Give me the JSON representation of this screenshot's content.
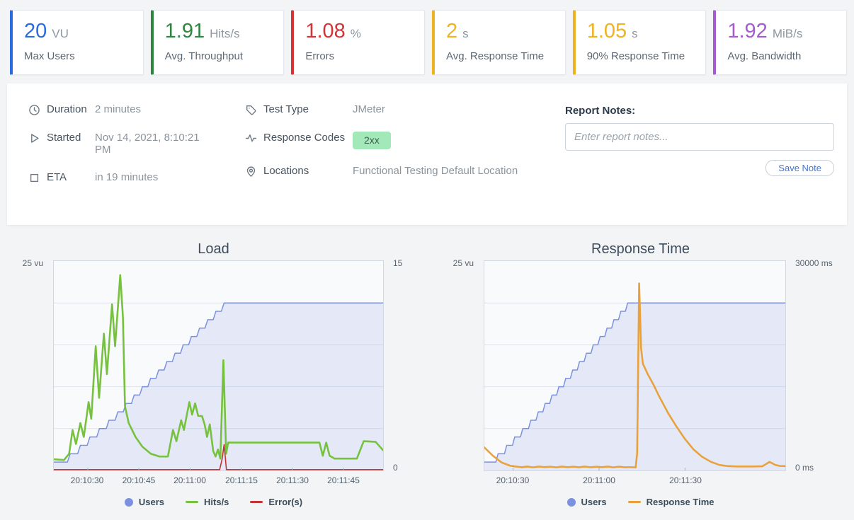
{
  "cards": [
    {
      "value": "20",
      "unit": "VU",
      "label": "Max Users",
      "color": "#2b6be0"
    },
    {
      "value": "1.91",
      "unit": "Hits/s",
      "label": "Avg. Throughput",
      "color": "#2e8540"
    },
    {
      "value": "1.08",
      "unit": "%",
      "label": "Errors",
      "color": "#d63434"
    },
    {
      "value": "2",
      "unit": "s",
      "label": "Avg. Response Time",
      "color": "#efb320"
    },
    {
      "value": "1.05",
      "unit": "s",
      "label": "90% Response Time",
      "color": "#efb320"
    },
    {
      "value": "1.92",
      "unit": "MiB/s",
      "label": "Avg. Bandwidth",
      "color": "#a55ad0"
    }
  ],
  "info": {
    "rows_left": [
      {
        "icon": "clock-icon",
        "label": "Duration",
        "value": "2 minutes"
      },
      {
        "icon": "play-icon",
        "label": "Started",
        "value": "Nov 14, 2021, 8:10:21 PM"
      },
      {
        "icon": "stop-icon",
        "label": "ETA",
        "value": "in 19 minutes"
      }
    ],
    "rows_mid": [
      {
        "icon": "tag-icon",
        "label": "Test Type",
        "value": "JMeter"
      },
      {
        "icon": "activity-icon",
        "label": "Response Codes",
        "badge": "2xx"
      },
      {
        "icon": "location-icon",
        "label": "Locations",
        "value": "Functional Testing Default Location"
      }
    ],
    "notes": {
      "label": "Report Notes:",
      "placeholder": "Enter report notes...",
      "save": "Save Note"
    }
  },
  "chart_data": [
    {
      "type": "line",
      "title": "Load",
      "grid": true,
      "legend_position": "bottom",
      "x_axis": {
        "range": [
          0,
          96.7
        ],
        "unit": "hh:mm:ss",
        "ticks": [
          {
            "t": 10,
            "label": "20:10:30"
          },
          {
            "t": 25,
            "label": "20:10:45"
          },
          {
            "t": 40,
            "label": "20:11:00"
          },
          {
            "t": 55,
            "label": "20:11:15"
          },
          {
            "t": 70,
            "label": "20:11:30"
          },
          {
            "t": 85,
            "label": "20:11:45"
          }
        ]
      },
      "left_axis": {
        "label": "25 vu",
        "max": 25,
        "grid_step": 5
      },
      "right_axis": {
        "top_label": "15",
        "bottom_label": "0",
        "max": 15
      },
      "series": [
        {
          "name": "Users",
          "axis": "left",
          "marker": "circle",
          "color": "#7b91e0",
          "fill": "rgba(122,144,223,0.16)",
          "width": 1.5,
          "points": [
            [
              0,
              1
            ],
            [
              4,
              1
            ],
            [
              4.8,
              2
            ],
            [
              7,
              2
            ],
            [
              7.8,
              3
            ],
            [
              9.8,
              3
            ],
            [
              10.6,
              4
            ],
            [
              12.6,
              4
            ],
            [
              13.4,
              5
            ],
            [
              15.4,
              5
            ],
            [
              16.2,
              6
            ],
            [
              18,
              6
            ],
            [
              18.8,
              7
            ],
            [
              20.4,
              7
            ],
            [
              21.2,
              8
            ],
            [
              22.8,
              8
            ],
            [
              23.6,
              9
            ],
            [
              25.2,
              9
            ],
            [
              26,
              10
            ],
            [
              27.6,
              10
            ],
            [
              28.4,
              11
            ],
            [
              30,
              11
            ],
            [
              30.8,
              12
            ],
            [
              32.4,
              12
            ],
            [
              33.2,
              13
            ],
            [
              34.8,
              13
            ],
            [
              35.6,
              14
            ],
            [
              37.2,
              14
            ],
            [
              38,
              15
            ],
            [
              39.6,
              15
            ],
            [
              40.4,
              16
            ],
            [
              42,
              16
            ],
            [
              42.8,
              17
            ],
            [
              44.4,
              17
            ],
            [
              45.2,
              18
            ],
            [
              46.8,
              18
            ],
            [
              47.6,
              19
            ],
            [
              49.2,
              19
            ],
            [
              50,
              20
            ],
            [
              96.7,
              20
            ]
          ]
        },
        {
          "name": "Hits/s",
          "axis": "right",
          "marker": "line",
          "color": "#76c13e",
          "width": 2.6,
          "points": [
            [
              0,
              0.8
            ],
            [
              3,
              0.75
            ],
            [
              4.5,
              1.2
            ],
            [
              5.5,
              2.9
            ],
            [
              6.5,
              1.9
            ],
            [
              7.8,
              3.4
            ],
            [
              8.8,
              2.4
            ],
            [
              10.2,
              4.9
            ],
            [
              11,
              3.7
            ],
            [
              12.3,
              8.9
            ],
            [
              13.3,
              5.2
            ],
            [
              14.7,
              9.8
            ],
            [
              15.6,
              6.9
            ],
            [
              17.1,
              11.9
            ],
            [
              18,
              8.9
            ],
            [
              19.5,
              14
            ],
            [
              20.3,
              11
            ],
            [
              20.9,
              4.6
            ],
            [
              22,
              3.4
            ],
            [
              24,
              2.4
            ],
            [
              26,
              1.7
            ],
            [
              28.5,
              1.2
            ],
            [
              31,
              1
            ],
            [
              33.5,
              1
            ],
            [
              35,
              2.9
            ],
            [
              36,
              2.1
            ],
            [
              37.4,
              3.6
            ],
            [
              38.2,
              2.9
            ],
            [
              39.8,
              4.9
            ],
            [
              40.6,
              4
            ],
            [
              41.5,
              4.8
            ],
            [
              42.4,
              3.9
            ],
            [
              43.5,
              3.9
            ],
            [
              44.3,
              3.3
            ],
            [
              45,
              2.4
            ],
            [
              45.8,
              3.3
            ],
            [
              46.8,
              1.4
            ],
            [
              47.5,
              1
            ],
            [
              48.2,
              1.5
            ],
            [
              48.9,
              0.85
            ],
            [
              49.8,
              7.9
            ],
            [
              50.6,
              1.2
            ],
            [
              51.2,
              2
            ],
            [
              78,
              2
            ],
            [
              79,
              1.05
            ],
            [
              80,
              2
            ],
            [
              81,
              1.05
            ],
            [
              82.5,
              0.85
            ],
            [
              89,
              0.85
            ],
            [
              91,
              2.1
            ],
            [
              94.5,
              2.05
            ],
            [
              96.7,
              1.45
            ]
          ]
        },
        {
          "name": "Error(s)",
          "axis": "right",
          "marker": "line",
          "color": "#c53434",
          "width": 1.6,
          "points": [
            [
              0,
              0.06
            ],
            [
              48.7,
              0.06
            ],
            [
              49.4,
              0.8
            ],
            [
              50,
              1.85
            ],
            [
              50.7,
              0.06
            ],
            [
              96.7,
              0.06
            ]
          ]
        }
      ]
    },
    {
      "type": "line",
      "title": "Response Time",
      "grid": true,
      "legend_position": "bottom",
      "x_axis": {
        "range": [
          0,
          105
        ],
        "unit": "hh:mm:ss",
        "ticks": [
          {
            "t": 10,
            "label": "20:10:30"
          },
          {
            "t": 40,
            "label": "20:11:00"
          },
          {
            "t": 70,
            "label": "20:11:30"
          }
        ]
      },
      "left_axis": {
        "label": "25 vu",
        "max": 25,
        "grid_step": 5
      },
      "right_axis": {
        "top_label": "30000 ms",
        "bottom_label": "0 ms",
        "max": 30000
      },
      "series": [
        {
          "name": "Users",
          "axis": "left",
          "marker": "circle",
          "color": "#7b91e0",
          "fill": "rgba(122,144,223,0.16)",
          "width": 1.5,
          "points": [
            [
              0,
              1
            ],
            [
              4,
              1
            ],
            [
              4.8,
              2
            ],
            [
              7,
              2
            ],
            [
              7.8,
              3
            ],
            [
              9.8,
              3
            ],
            [
              10.6,
              4
            ],
            [
              12.6,
              4
            ],
            [
              13.4,
              5
            ],
            [
              15.4,
              5
            ],
            [
              16.2,
              6
            ],
            [
              18,
              6
            ],
            [
              18.8,
              7
            ],
            [
              20.4,
              7
            ],
            [
              21.2,
              8
            ],
            [
              22.8,
              8
            ],
            [
              23.6,
              9
            ],
            [
              25.2,
              9
            ],
            [
              26,
              10
            ],
            [
              27.6,
              10
            ],
            [
              28.4,
              11
            ],
            [
              30,
              11
            ],
            [
              30.8,
              12
            ],
            [
              32.4,
              12
            ],
            [
              33.2,
              13
            ],
            [
              34.8,
              13
            ],
            [
              35.6,
              14
            ],
            [
              37.2,
              14
            ],
            [
              38,
              15
            ],
            [
              39.6,
              15
            ],
            [
              40.4,
              16
            ],
            [
              42,
              16
            ],
            [
              42.8,
              17
            ],
            [
              44.4,
              17
            ],
            [
              45.2,
              18
            ],
            [
              46.8,
              18
            ],
            [
              47.6,
              19
            ],
            [
              49.2,
              19
            ],
            [
              50,
              20
            ],
            [
              105,
              20
            ]
          ]
        },
        {
          "name": "Response Time",
          "axis": "right",
          "marker": "line",
          "color": "#e9a23b",
          "width": 2.6,
          "points": [
            [
              0,
              3300
            ],
            [
              3,
              2100
            ],
            [
              6,
              1150
            ],
            [
              9,
              680
            ],
            [
              11,
              560
            ],
            [
              13,
              460
            ],
            [
              15,
              560
            ],
            [
              17,
              440
            ],
            [
              19,
              560
            ],
            [
              21,
              470
            ],
            [
              23,
              540
            ],
            [
              25,
              440
            ],
            [
              27,
              560
            ],
            [
              29,
              460
            ],
            [
              31,
              540
            ],
            [
              33,
              450
            ],
            [
              35,
              560
            ],
            [
              37,
              450
            ],
            [
              39,
              540
            ],
            [
              41,
              460
            ],
            [
              43,
              560
            ],
            [
              45,
              440
            ],
            [
              47,
              540
            ],
            [
              49,
              450
            ],
            [
              51,
              480
            ],
            [
              52.8,
              440
            ],
            [
              53.3,
              2500
            ],
            [
              54,
              26800
            ],
            [
              54.7,
              17500
            ],
            [
              55.3,
              15300
            ],
            [
              57,
              13800
            ],
            [
              59,
              12300
            ],
            [
              61,
              10600
            ],
            [
              64,
              8300
            ],
            [
              67,
              6300
            ],
            [
              70,
              4500
            ],
            [
              73,
              3000
            ],
            [
              76,
              1950
            ],
            [
              79,
              1250
            ],
            [
              82,
              800
            ],
            [
              85,
              620
            ],
            [
              88,
              570
            ],
            [
              91,
              570
            ],
            [
              94,
              570
            ],
            [
              97,
              600
            ],
            [
              99.5,
              1230
            ],
            [
              101.5,
              800
            ],
            [
              103,
              640
            ],
            [
              105,
              620
            ]
          ]
        }
      ]
    }
  ]
}
